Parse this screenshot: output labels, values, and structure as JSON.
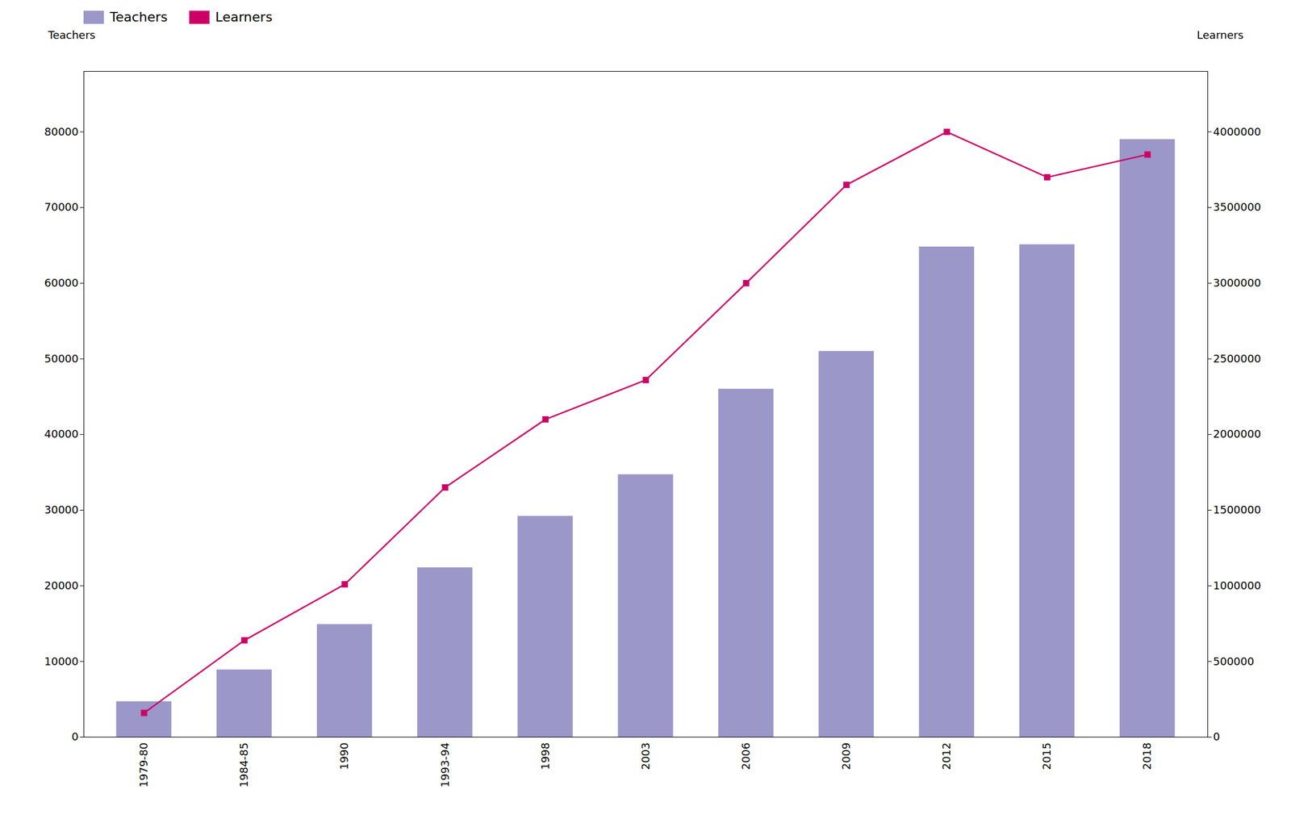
{
  "chart_data": {
    "type": "bar",
    "categories": [
      "1979-80",
      "1984-85",
      "1990",
      "1993-94",
      "1998",
      "2003",
      "2006",
      "2009",
      "2012",
      "2015",
      "2018"
    ],
    "series": [
      {
        "name": "Teachers",
        "type": "bar",
        "color": "#9b97c8",
        "values": [
          4700,
          8900,
          14900,
          22400,
          29200,
          34700,
          46000,
          51000,
          64800,
          65100,
          79000
        ]
      },
      {
        "name": "Learners",
        "type": "line",
        "color": "#cc0066",
        "marker": "square",
        "axis": "y2",
        "values": [
          160000,
          640000,
          1010000,
          1650000,
          2100000,
          2360000,
          3000000,
          3650000,
          4000000,
          3700000,
          3850000
        ]
      }
    ],
    "ylabel": "Teachers",
    "y2label": "Learners",
    "ylim": [
      0,
      88000
    ],
    "yticks": [
      0,
      10000,
      20000,
      30000,
      40000,
      50000,
      60000,
      70000,
      80000
    ],
    "y2lim": [
      0,
      4400000
    ],
    "y2ticks": [
      0,
      500000,
      1000000,
      1500000,
      2000000,
      2500000,
      3000000,
      3500000,
      4000000
    ],
    "grid": false,
    "legend": "upper left"
  }
}
